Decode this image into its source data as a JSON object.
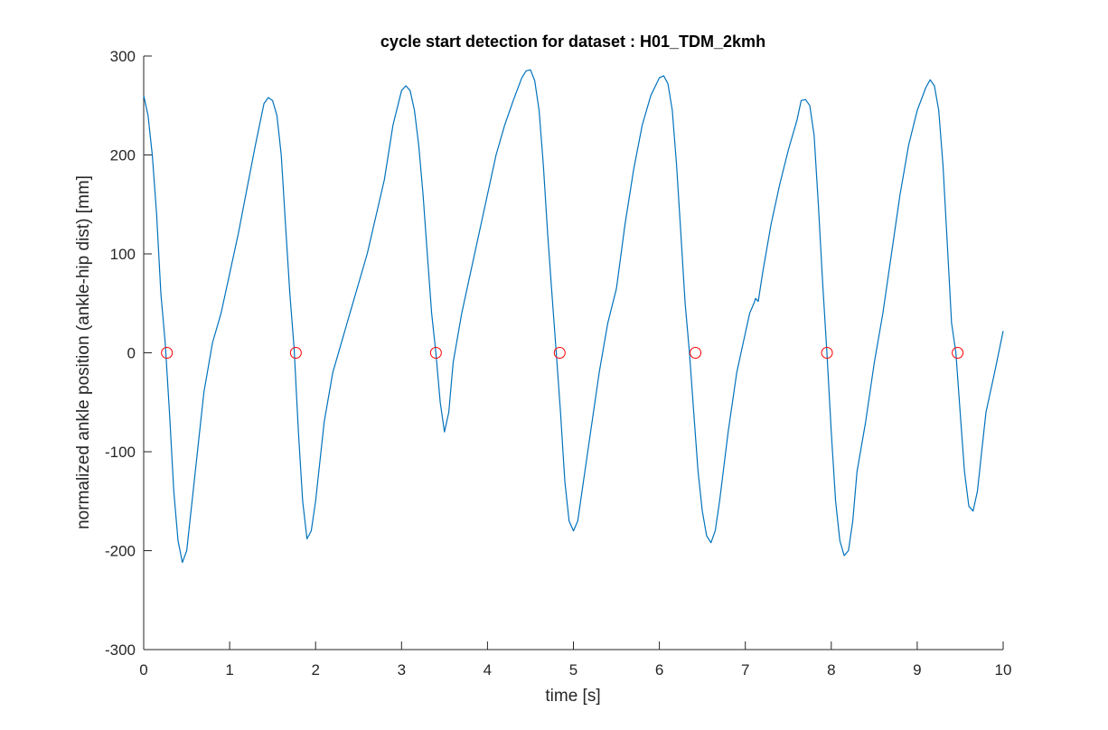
{
  "chart_data": {
    "type": "line",
    "title": "cycle start detection for dataset : H01_TDM_2kmh",
    "xlabel": "time [s]",
    "ylabel": "normalized ankle position (ankle-hip dist) [mm]",
    "xlim": [
      0,
      10
    ],
    "ylim": [
      -300,
      300
    ],
    "xticks": [
      0,
      1,
      2,
      3,
      4,
      5,
      6,
      7,
      8,
      9,
      10
    ],
    "yticks": [
      -300,
      -200,
      -100,
      0,
      100,
      200,
      300
    ],
    "grid": false,
    "box": "off",
    "series": [
      {
        "color": "#0072BD",
        "x": [
          0.0,
          0.05,
          0.1,
          0.15,
          0.2,
          0.25,
          0.3,
          0.35,
          0.4,
          0.45,
          0.5,
          0.6,
          0.7,
          0.8,
          0.9,
          1.0,
          1.1,
          1.2,
          1.3,
          1.4,
          1.45,
          1.5,
          1.55,
          1.6,
          1.65,
          1.7,
          1.75,
          1.8,
          1.85,
          1.9,
          1.95,
          2.0,
          2.1,
          2.2,
          2.4,
          2.6,
          2.8,
          2.9,
          3.0,
          3.05,
          3.1,
          3.15,
          3.2,
          3.25,
          3.3,
          3.35,
          3.4,
          3.45,
          3.5,
          3.55,
          3.6,
          3.7,
          3.8,
          3.9,
          4.0,
          4.1,
          4.2,
          4.3,
          4.4,
          4.45,
          4.5,
          4.55,
          4.6,
          4.65,
          4.7,
          4.75,
          4.8,
          4.85,
          4.9,
          4.95,
          5.0,
          5.05,
          5.1,
          5.2,
          5.3,
          5.4,
          5.5,
          5.6,
          5.7,
          5.8,
          5.9,
          6.0,
          6.05,
          6.1,
          6.15,
          6.2,
          6.25,
          6.3,
          6.35,
          6.4,
          6.45,
          6.5,
          6.55,
          6.6,
          6.65,
          6.7,
          6.8,
          6.9,
          7.0,
          7.05,
          7.1,
          7.12,
          7.15,
          7.2,
          7.3,
          7.4,
          7.5,
          7.6,
          7.65,
          7.7,
          7.75,
          7.8,
          7.85,
          7.9,
          7.95,
          8.0,
          8.05,
          8.1,
          8.15,
          8.2,
          8.25,
          8.3,
          8.4,
          8.5,
          8.6,
          8.7,
          8.8,
          8.9,
          9.0,
          9.1,
          9.15,
          9.2,
          9.25,
          9.3,
          9.35,
          9.4,
          9.45,
          9.5,
          9.55,
          9.6,
          9.65,
          9.7,
          9.75,
          9.8,
          9.9,
          10.0
        ],
        "y": [
          260,
          240,
          200,
          140,
          60,
          10,
          -60,
          -140,
          -190,
          -212,
          -200,
          -120,
          -40,
          10,
          40,
          80,
          120,
          165,
          210,
          252,
          258,
          255,
          240,
          200,
          130,
          60,
          5,
          -80,
          -150,
          -188,
          -180,
          -150,
          -70,
          -20,
          40,
          100,
          175,
          230,
          265,
          270,
          265,
          245,
          210,
          160,
          100,
          40,
          0,
          -50,
          -80,
          -60,
          -10,
          40,
          80,
          120,
          160,
          200,
          230,
          255,
          278,
          285,
          286,
          275,
          245,
          190,
          120,
          60,
          0,
          -60,
          -130,
          -170,
          -180,
          -170,
          -140,
          -80,
          -20,
          30,
          65,
          130,
          185,
          230,
          260,
          278,
          280,
          272,
          245,
          190,
          120,
          50,
          0,
          -60,
          -120,
          -160,
          -185,
          -192,
          -180,
          -150,
          -80,
          -20,
          20,
          40,
          50,
          55,
          52,
          80,
          130,
          170,
          205,
          235,
          255,
          256,
          250,
          220,
          150,
          70,
          0,
          -80,
          -150,
          -190,
          -205,
          -200,
          -170,
          -120,
          -70,
          -10,
          40,
          100,
          160,
          210,
          245,
          268,
          276,
          270,
          245,
          190,
          110,
          30,
          0,
          -60,
          -120,
          -155,
          -160,
          -140,
          -100,
          -60,
          -20,
          22
        ]
      },
      {
        "color": "#FF0000",
        "marker": "o",
        "x": [
          0.27,
          1.77,
          3.4,
          4.84,
          6.42,
          7.95,
          9.47
        ],
        "y": [
          0,
          0,
          0,
          0,
          0,
          0,
          0
        ]
      }
    ]
  }
}
